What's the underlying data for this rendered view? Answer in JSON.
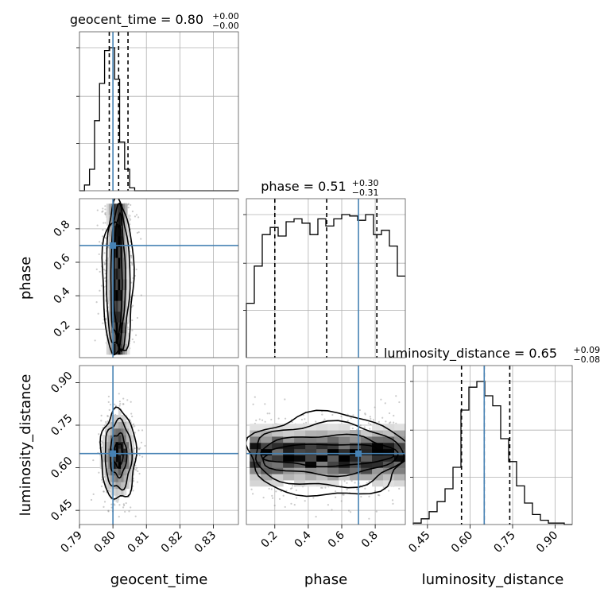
{
  "chart_data": {
    "type": "corner",
    "parameters": [
      {
        "name": "geocent_time",
        "axis_label": "geocent_time",
        "title_prefix": "geocent_time = 0.80",
        "upper": "+0.00",
        "lower": "−0.00",
        "range": [
          0.79,
          0.8375
        ],
        "ticks": [
          0.79,
          0.8,
          0.81,
          0.82,
          0.83
        ],
        "tick_labels": [
          "0.79",
          "0.80",
          "0.81",
          "0.82",
          "0.83"
        ],
        "truth": 0.8,
        "quantiles": [
          0.7989,
          0.8017,
          0.8045
        ],
        "hist": {
          "edges_start": 0.79,
          "bin_width": 0.0015,
          "counts": [
            0,
            0.04,
            0.15,
            0.49,
            0.75,
            0.98,
            1.0,
            0.78,
            0.34,
            0.15,
            0.02,
            0,
            0,
            0,
            0,
            0,
            0,
            0,
            0,
            0,
            0,
            0,
            0,
            0,
            0,
            0,
            0,
            0,
            0,
            0,
            0,
            0
          ]
        }
      },
      {
        "name": "phase",
        "axis_label": "phase",
        "title_prefix": "phase = 0.51",
        "upper": "+0.30",
        "lower": "−0.31",
        "range": [
          0.03,
          0.98
        ],
        "ticks": [
          0.2,
          0.4,
          0.6,
          0.8
        ],
        "tick_labels": [
          "0.2",
          "0.4",
          "0.6",
          "0.8"
        ],
        "truth": 0.7,
        "quantiles": [
          0.2,
          0.51,
          0.81
        ],
        "hist": {
          "edges_start": 0.03,
          "bin_width": 0.0475,
          "counts": [
            0.38,
            0.64,
            0.86,
            0.91,
            0.85,
            0.95,
            0.97,
            0.94,
            0.86,
            0.97,
            0.92,
            0.97,
            1.0,
            0.99,
            0.96,
            1.0,
            0.86,
            0.89,
            0.78,
            0.57
          ]
        }
      },
      {
        "name": "luminosity_distance",
        "axis_label": "luminosity_distance",
        "title_prefix": "luminosity_distance = 0.65",
        "upper": "+0.09",
        "lower": "−0.08",
        "range": [
          0.4,
          0.96
        ],
        "ticks": [
          0.45,
          0.6,
          0.75,
          0.9
        ],
        "tick_labels": [
          "0.45",
          "0.60",
          "0.75",
          "0.90"
        ],
        "truth": 0.65,
        "quantiles": [
          0.57,
          0.65,
          0.74
        ],
        "hist": {
          "edges_start": 0.4,
          "bin_width": 0.028,
          "counts": [
            0.01,
            0.04,
            0.09,
            0.16,
            0.25,
            0.4,
            0.8,
            0.96,
            1.0,
            0.9,
            0.83,
            0.6,
            0.44,
            0.27,
            0.15,
            0.07,
            0.03,
            0.01,
            0.01,
            0
          ]
        }
      }
    ],
    "pairs": [
      {
        "x": "geocent_time",
        "y": "phase",
        "center": [
          0.8015,
          0.47
        ],
        "spread": [
          0.0022,
          0.26
        ],
        "y_limits": [
          0.05,
          0.95
        ]
      },
      {
        "x": "geocent_time",
        "y": "luminosity_distance",
        "center": [
          0.8016,
          0.645
        ],
        "spread": [
          0.0025,
          0.075
        ]
      },
      {
        "x": "phase",
        "y": "luminosity_distance",
        "center": [
          0.5,
          0.645
        ],
        "spread": [
          0.27,
          0.07
        ],
        "x_limits": [
          0.05,
          0.98
        ]
      }
    ],
    "truth_color": "#4682b4",
    "grid": true
  }
}
